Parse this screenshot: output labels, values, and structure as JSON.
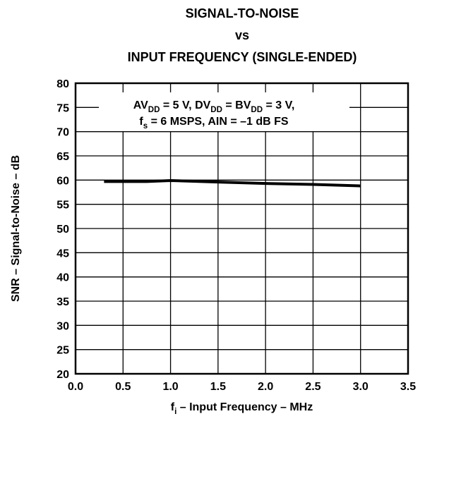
{
  "chart_data": {
    "type": "line",
    "title": [
      "SIGNAL-TO-NOISE",
      "vs",
      "INPUT FREQUENCY (SINGLE-ENDED)"
    ],
    "annotation": [
      [
        "AV",
        "DD",
        " = 5 V, DV",
        "DD",
        " = BV",
        "DD",
        " = 3 V,"
      ],
      [
        "f",
        "s",
        " = 6 MSPS, AIN = –1 dB FS"
      ]
    ],
    "x_label": [
      "f",
      "i",
      " – Input Frequency – MHz"
    ],
    "y_label": "SNR – Signal-to-Noise – dB",
    "x": [
      0.3,
      0.5,
      0.75,
      1.0,
      1.5,
      2.0,
      2.5,
      3.0
    ],
    "series": [
      {
        "name": "SNR",
        "color": "#000000",
        "values": [
          59.7,
          59.7,
          59.7,
          59.9,
          59.6,
          59.3,
          59.1,
          58.8
        ]
      }
    ],
    "xlim": [
      0,
      3.5
    ],
    "xticks": [
      {
        "value": 0,
        "label": "0.0"
      },
      0.5,
      {
        "value": 1,
        "label": "1.0"
      },
      1.5,
      {
        "value": 2,
        "label": "2.0"
      },
      2.5,
      {
        "value": 3,
        "label": "3.0"
      },
      3.5
    ],
    "ylim": [
      20,
      80
    ],
    "yticks": [
      20,
      25,
      30,
      35,
      40,
      45,
      50,
      55,
      60,
      65,
      70,
      75,
      80
    ],
    "grid": true
  }
}
